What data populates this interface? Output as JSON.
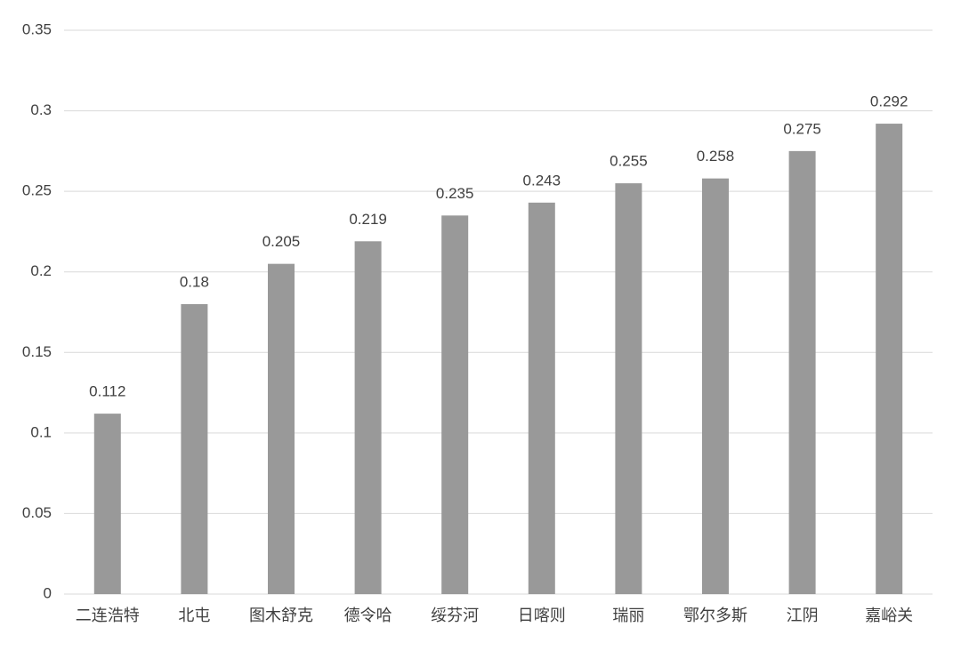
{
  "chart_data": {
    "type": "bar",
    "categories": [
      "二连浩特",
      "北屯",
      "图木舒克",
      "德令哈",
      "绥芬河",
      "日喀则",
      "瑞丽",
      "鄂尔多斯",
      "江阴",
      "嘉峪关"
    ],
    "values": [
      0.112,
      0.18,
      0.205,
      0.219,
      0.235,
      0.243,
      0.255,
      0.258,
      0.275,
      0.292
    ],
    "color": "#999999",
    "ylim": [
      0,
      0.35
    ],
    "yticks": [
      0,
      0.05,
      0.1,
      0.15,
      0.2,
      0.25,
      0.3,
      0.35
    ],
    "grid": true,
    "data_labels": true
  }
}
